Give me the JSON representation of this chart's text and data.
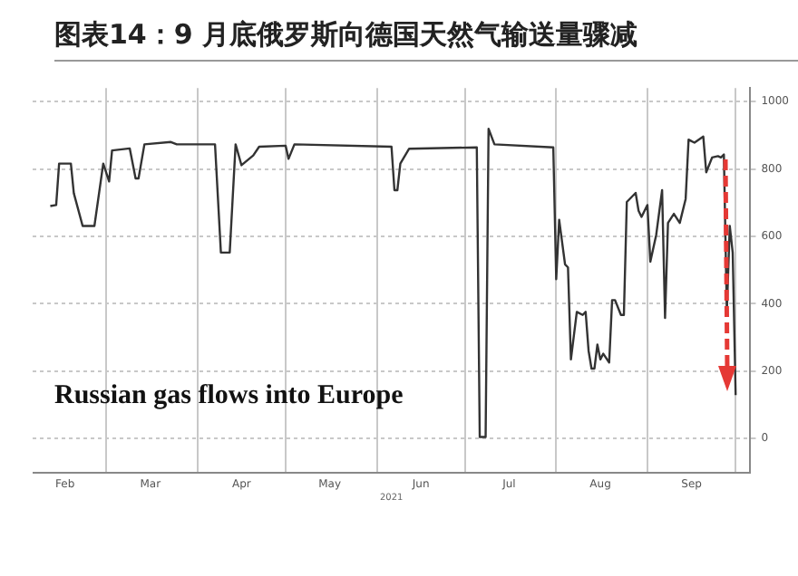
{
  "chart_data": {
    "type": "line",
    "title": "图表14：9 月底俄罗斯向德国天然气输送量骤减",
    "xlabel": "2021",
    "annotations": [
      "Russian gas flows into Europe"
    ],
    "x": [
      "2021-02-10",
      "2021-02-12",
      "2021-02-13",
      "2021-02-17",
      "2021-02-18",
      "2021-02-21",
      "2021-02-25",
      "2021-02-28",
      "2021-03-02",
      "2021-03-03",
      "2021-03-09",
      "2021-03-11",
      "2021-03-12",
      "2021-03-14",
      "2021-03-23",
      "2021-03-25",
      "2021-04-07",
      "2021-04-09",
      "2021-04-12",
      "2021-04-14",
      "2021-04-16",
      "2021-04-20",
      "2021-04-22",
      "2021-05-01",
      "2021-05-02",
      "2021-05-04",
      "2021-06-06",
      "2021-06-07",
      "2021-06-08",
      "2021-06-09",
      "2021-06-12",
      "2021-07-05",
      "2021-07-06",
      "2021-07-08",
      "2021-07-09",
      "2021-07-11",
      "2021-07-31",
      "2021-08-01",
      "2021-08-02",
      "2021-08-04",
      "2021-08-05",
      "2021-08-06",
      "2021-08-08",
      "2021-08-10",
      "2021-08-11",
      "2021-08-12",
      "2021-08-13",
      "2021-08-14",
      "2021-08-15",
      "2021-08-16",
      "2021-08-17",
      "2021-08-19",
      "2021-08-20",
      "2021-08-21",
      "2021-08-23",
      "2021-08-24",
      "2021-08-25",
      "2021-08-28",
      "2021-08-29",
      "2021-08-30",
      "2021-09-01",
      "2021-09-02",
      "2021-09-04",
      "2021-09-06",
      "2021-09-07",
      "2021-09-08",
      "2021-09-10",
      "2021-09-12",
      "2021-09-14",
      "2021-09-15",
      "2021-09-17",
      "2021-09-20",
      "2021-09-21",
      "2021-09-23",
      "2021-09-25",
      "2021-09-26",
      "2021-09-27",
      "2021-09-28",
      "2021-09-29",
      "2021-09-30",
      "2021-10-01"
    ],
    "series": [
      {
        "color": "#333333",
        "values": [
          690,
          693,
          816,
          816,
          728,
          631,
          631,
          816,
          763,
          855,
          861,
          772,
          772,
          873,
          880,
          873,
          873,
          552,
          552,
          873,
          811,
          840,
          866,
          869,
          830,
          873,
          866,
          737,
          737,
          816,
          860,
          864,
          5,
          5,
          919,
          873,
          864,
          473,
          649,
          517,
          508,
          235,
          376,
          367,
          376,
          261,
          208,
          208,
          279,
          235,
          252,
          226,
          411,
          411,
          367,
          367,
          702,
          729,
          676,
          658,
          693,
          525,
          605,
          737,
          358,
          640,
          667,
          640,
          711,
          887,
          878,
          896,
          790,
          834,
          838,
          834,
          843,
          376,
          631,
          552,
          129
        ]
      }
    ],
    "xlim": [
      "2021-02-04",
      "2021-10-06"
    ],
    "xticks": [
      {
        "value": "2021-02-15",
        "label": "Feb"
      },
      {
        "value": "2021-03-01",
        "label": null
      },
      {
        "value": "2021-03-16",
        "label": "Mar"
      },
      {
        "value": "2021-04-01",
        "label": null
      },
      {
        "value": "2021-04-16",
        "label": "Apr"
      },
      {
        "value": "2021-05-01",
        "label": null
      },
      {
        "value": "2021-05-16",
        "label": "May"
      },
      {
        "value": "2021-06-01",
        "label": null
      },
      {
        "value": "2021-06-16",
        "label": "Jun"
      },
      {
        "value": "2021-07-01",
        "label": null
      },
      {
        "value": "2021-07-16",
        "label": "Jul"
      },
      {
        "value": "2021-08-01",
        "label": null
      },
      {
        "value": "2021-08-16",
        "label": "Aug"
      },
      {
        "value": "2021-09-01",
        "label": null
      },
      {
        "value": "2021-09-16",
        "label": "Sep"
      },
      {
        "value": "2021-10-01",
        "label": null
      }
    ],
    "ylim": [
      -100,
      1040
    ],
    "yticks": [
      0,
      200,
      400,
      600,
      800,
      1000
    ],
    "grid": true,
    "marker": "none",
    "line_style": "solid",
    "legend": false
  }
}
